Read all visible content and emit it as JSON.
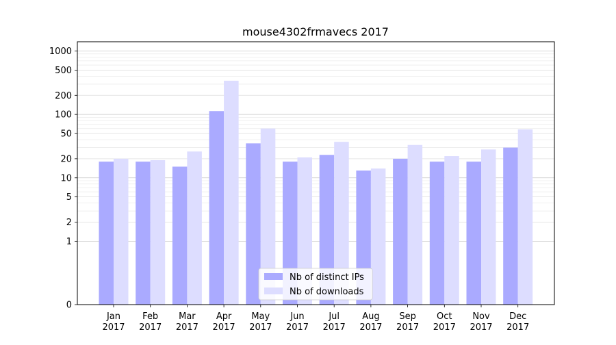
{
  "chart_data": {
    "type": "bar",
    "title": "mouse4302frmavecs 2017",
    "xlabel": "",
    "ylabel": "",
    "yscale": "symlog",
    "yticks": [
      0,
      1,
      2,
      5,
      10,
      20,
      50,
      100,
      200,
      500,
      1000
    ],
    "categories": [
      [
        "Jan",
        "2017"
      ],
      [
        "Feb",
        "2017"
      ],
      [
        "Mar",
        "2017"
      ],
      [
        "Apr",
        "2017"
      ],
      [
        "May",
        "2017"
      ],
      [
        "Jun",
        "2017"
      ],
      [
        "Jul",
        "2017"
      ],
      [
        "Aug",
        "2017"
      ],
      [
        "Sep",
        "2017"
      ],
      [
        "Oct",
        "2017"
      ],
      [
        "Nov",
        "2017"
      ],
      [
        "Dec",
        "2017"
      ]
    ],
    "series": [
      {
        "name": "Nb of distinct IPs",
        "color": "#aaaaff",
        "values": [
          18,
          18,
          15,
          113,
          35,
          18,
          23,
          13,
          20,
          18,
          18,
          30
        ]
      },
      {
        "name": "Nb of downloads",
        "color": "#ddddff",
        "values": [
          20,
          19,
          26,
          340,
          60,
          21,
          37,
          14,
          33,
          22,
          28,
          58
        ]
      }
    ],
    "grid": true,
    "legend_position": "lower center"
  }
}
